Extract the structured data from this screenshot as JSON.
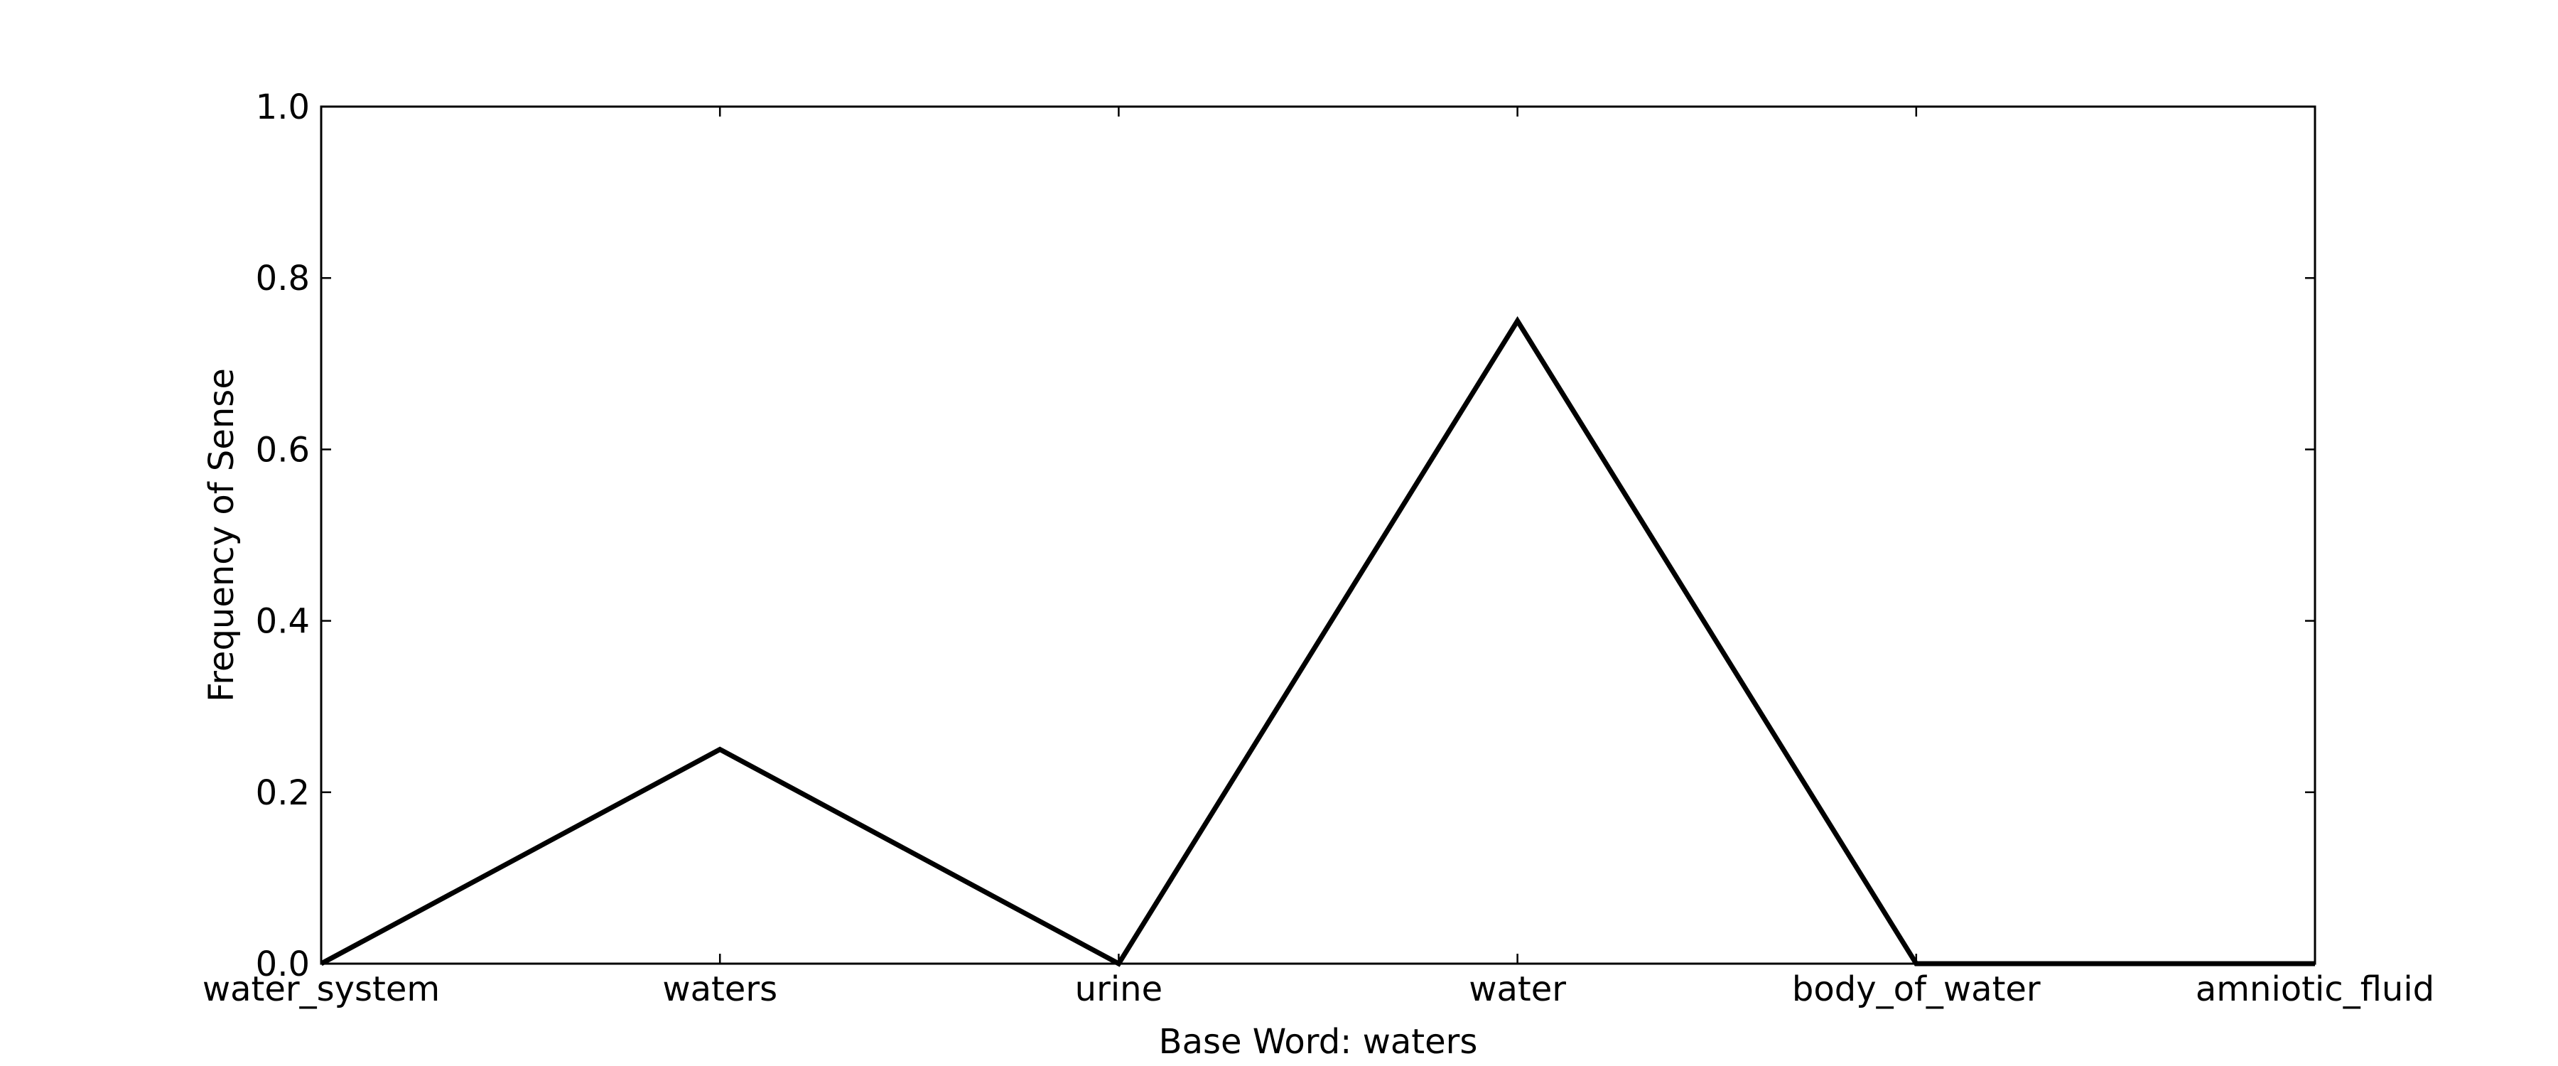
{
  "chart_data": {
    "type": "line",
    "title": "",
    "xlabel": "Base Word: waters",
    "ylabel": "Frequency of Sense",
    "categories": [
      "water_system",
      "waters",
      "urine",
      "water",
      "body_of_water",
      "amniotic_fluid"
    ],
    "series": [
      {
        "values": [
          0.0,
          0.25,
          0.0,
          0.75,
          0.0,
          0.0
        ]
      }
    ],
    "ylim": [
      0.0,
      1.0
    ],
    "yticks": [
      "0.0",
      "0.2",
      "0.4",
      "0.6",
      "0.8",
      "1.0"
    ],
    "grid": false,
    "line_color": "#000000"
  }
}
